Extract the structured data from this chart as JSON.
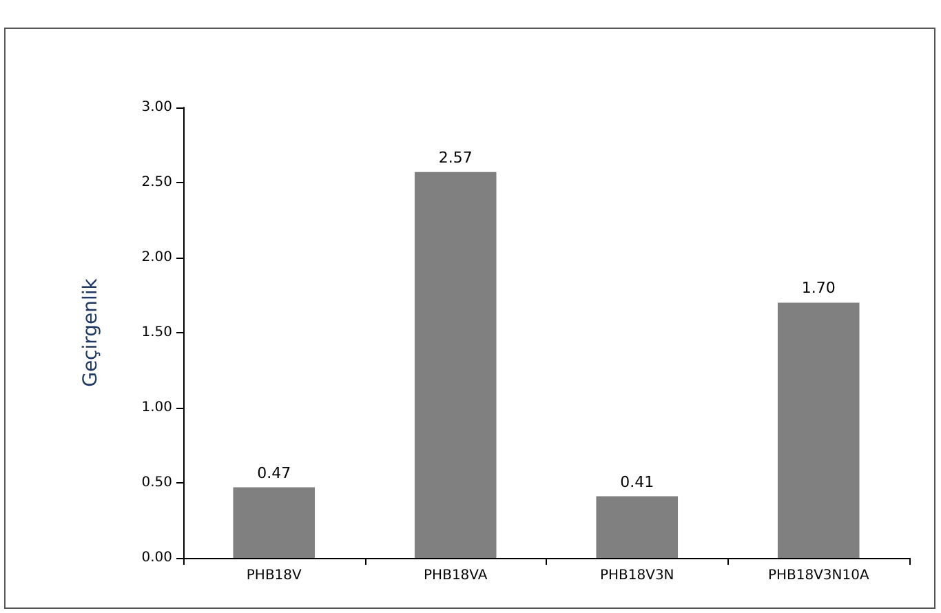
{
  "chart_data": {
    "type": "bar",
    "ylabel": "Geçirgenlik",
    "categories": [
      "PHB18V",
      "PHB18VA",
      "PHB18V3N",
      "PHB18V3N10A"
    ],
    "values": [
      0.47,
      2.57,
      0.41,
      1.7
    ],
    "value_labels": [
      "0.47",
      "2.57",
      "0.41",
      "1.70"
    ],
    "color": "#808080",
    "ylim": [
      0,
      3
    ],
    "yticks": [
      {
        "value": 0,
        "label": "0.00"
      },
      {
        "value": 0.5,
        "label": "0.50"
      },
      {
        "value": 1,
        "label": "1.00"
      },
      {
        "value": 1.5,
        "label": "1.50"
      },
      {
        "value": 2,
        "label": "2.00"
      },
      {
        "value": 2.5,
        "label": "2.50"
      },
      {
        "value": 3,
        "label": "3.00"
      }
    ],
    "grid": false
  }
}
